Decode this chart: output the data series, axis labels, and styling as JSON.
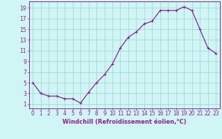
{
  "x": [
    0,
    1,
    2,
    3,
    4,
    5,
    6,
    7,
    8,
    9,
    10,
    11,
    12,
    13,
    14,
    15,
    16,
    17,
    18,
    19,
    20,
    21,
    22,
    23
  ],
  "y": [
    5,
    3,
    2.5,
    2.5,
    2,
    2,
    1.2,
    3.2,
    5,
    6.5,
    8.5,
    11.5,
    13.5,
    14.5,
    16,
    16.5,
    18.5,
    18.5,
    18.5,
    19.2,
    18.5,
    15,
    11.5,
    10.5
  ],
  "line_color": "#882288",
  "marker": "+",
  "marker_size": 3,
  "linewidth": 0.9,
  "background_color": "#d0f5f5",
  "grid_color": "#a0d8d8",
  "xlabel": "Windchill (Refroidissement éolien,°C)",
  "xlabel_fontsize": 6.0,
  "xlabel_color": "#882288",
  "ytick_labels": [
    "1",
    "3",
    "5",
    "7",
    "9",
    "11",
    "13",
    "15",
    "17",
    "19"
  ],
  "ytick_vals": [
    1,
    3,
    5,
    7,
    9,
    11,
    13,
    15,
    17,
    19
  ],
  "ylim": [
    0.2,
    20.2
  ],
  "xlim": [
    -0.5,
    23.5
  ],
  "tick_color": "#882288",
  "tick_fontsize": 5.5,
  "spine_color": "#882288",
  "xlabel_fontweight": "bold"
}
